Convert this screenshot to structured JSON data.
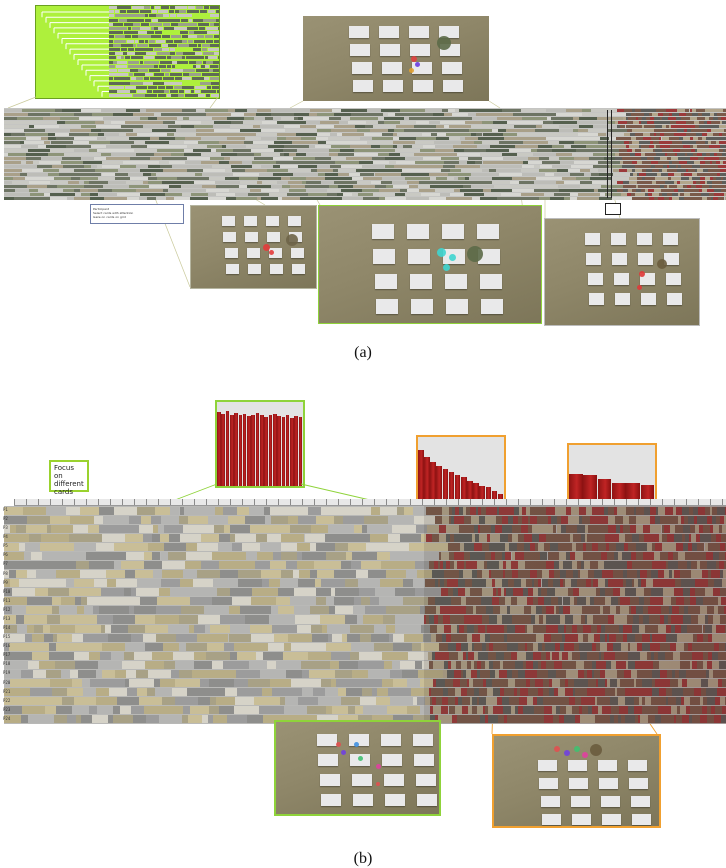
{
  "figure": {
    "panel_a": {
      "caption": "(a)",
      "legend_lines": [
        "Participant",
        "Select cards with attention",
        "Gaze on cards on grid",
        "Missing / low confidence"
      ]
    },
    "panel_b": {
      "caption": "(b)",
      "note": "Focus on different cards",
      "row_labels": [
        "P1",
        "P2",
        "P3",
        "P4",
        "P5",
        "P6",
        "P7",
        "P8",
        "P9",
        "P10",
        "P11",
        "P12",
        "P13",
        "P14",
        "P15",
        "P16",
        "P17",
        "P18",
        "P19",
        "P20",
        "P21",
        "P22",
        "P23",
        "P24"
      ],
      "histogram_1_fractions": [
        0.88,
        0.86,
        0.89,
        0.85,
        0.87,
        0.84,
        0.86,
        0.83,
        0.85,
        0.87,
        0.84,
        0.82,
        0.85,
        0.86,
        0.83,
        0.82,
        0.84,
        0.81,
        0.83,
        0.82
      ],
      "histogram_2_fractions": [
        0.85,
        0.76,
        0.7,
        0.66,
        0.62,
        0.58,
        0.55,
        0.52,
        0.48,
        0.45,
        0.42,
        0.4,
        0.36,
        0.32
      ],
      "histogram_3_fractions": [
        0.66,
        0.64,
        0.6,
        0.55,
        0.55,
        0.52
      ]
    },
    "colors": {
      "green_box": "#8fd33a",
      "lime_panel": "#aef03c",
      "orange_box": "#f0a030",
      "bar_red": "#b31d1d",
      "strip_khaki": "#b8ad86",
      "strip_gray": "#9c9c9c"
    }
  }
}
